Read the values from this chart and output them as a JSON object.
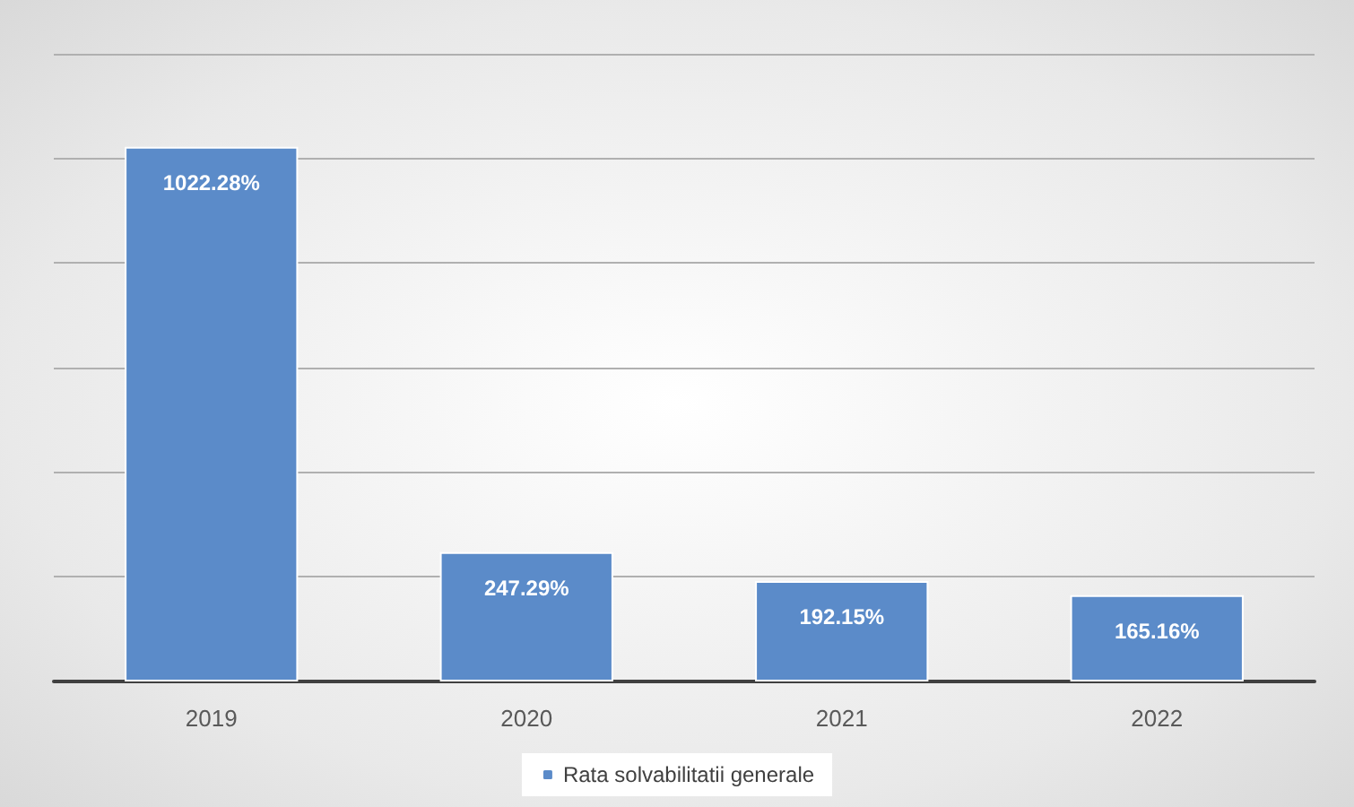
{
  "chart_data": {
    "type": "bar",
    "categories": [
      "2019",
      "2020",
      "2021",
      "2022"
    ],
    "series": [
      {
        "name": "Rata solvabilitatii generale",
        "color": "#5b8bc9",
        "values": [
          1022.28,
          247.29,
          192.15,
          165.16
        ],
        "value_labels": [
          "1022.28%",
          "247.29%",
          "192.15%",
          "165.16%"
        ]
      }
    ],
    "ylim": [
      0,
      1200
    ],
    "yticks": [
      {
        "value": 0,
        "label": null
      },
      {
        "value": 200,
        "label": null
      },
      {
        "value": 400,
        "label": null
      },
      {
        "value": 600,
        "label": null
      },
      {
        "value": 800,
        "label": null
      },
      {
        "value": 1000,
        "label": null
      },
      {
        "value": 1200,
        "label": null
      }
    ],
    "tick_labels": "x",
    "grid": "y",
    "legend": "bottom"
  }
}
